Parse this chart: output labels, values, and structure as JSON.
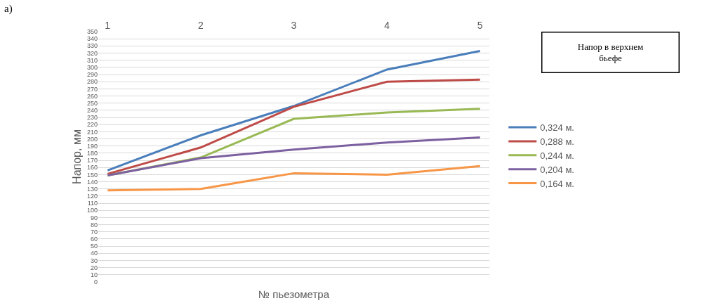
{
  "chart_data": {
    "type": "line",
    "xlabel": "№ пьезометра",
    "ylabel": "Напор, мм",
    "legend_title": "Напор в верхнем бьефе",
    "annotations": [
      "a)"
    ],
    "categories": [
      "1",
      "2",
      "3",
      "4",
      "5"
    ],
    "ylim": [
      0,
      350
    ],
    "yticks": [
      0,
      10,
      20,
      30,
      40,
      50,
      60,
      70,
      80,
      90,
      100,
      110,
      120,
      130,
      140,
      150,
      160,
      170,
      180,
      190,
      200,
      210,
      220,
      230,
      240,
      250,
      260,
      270,
      280,
      290,
      300,
      310,
      320,
      330,
      340,
      350
    ],
    "grid": "y",
    "legend": "right",
    "marker": "none",
    "line_style": "solid",
    "series": [
      {
        "name": "0,324 м.",
        "color": "#4a7ebb",
        "values": [
          156,
          205,
          246,
          297,
          323
        ]
      },
      {
        "name": "0,288 м.",
        "color": "#be4b48",
        "values": [
          151,
          188,
          245,
          280,
          283
        ]
      },
      {
        "name": "0,244 м.",
        "color": "#98b954",
        "values": [
          149,
          174,
          228,
          237,
          242
        ]
      },
      {
        "name": "0,204 м.",
        "color": "#7d60a0",
        "values": [
          149,
          173,
          185,
          195,
          202
        ]
      },
      {
        "name": "0,164 м.",
        "color": "#f79646",
        "values": [
          128,
          130,
          152,
          150,
          162
        ]
      }
    ]
  }
}
